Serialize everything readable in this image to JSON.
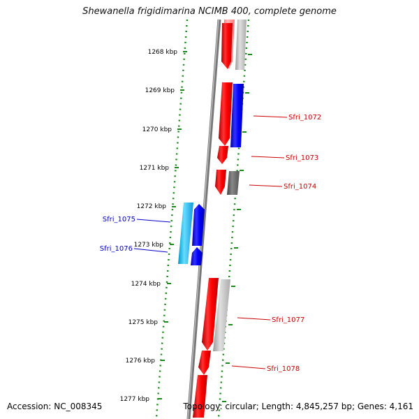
{
  "title": "Shewanella frigidimarina NCIMB 400, complete genome",
  "footer": {
    "accession": "Accession: NC_008345",
    "summary": "Topology: circular; Length: 4,845,257 bp; Genes: 4,161"
  },
  "ticks": [
    "1268 kbp",
    "1269 kbp",
    "1270 kbp",
    "1271 kbp",
    "1272 kbp",
    "1273 kbp",
    "1274 kbp",
    "1275 kbp",
    "1276 kbp",
    "1277 kbp"
  ],
  "gene_labels": [
    {
      "name": "Sfri_1072",
      "color": "#cc0000"
    },
    {
      "name": "Sfri_1073",
      "color": "#cc0000"
    },
    {
      "name": "Sfri_1074",
      "color": "#cc0000"
    },
    {
      "name": "Sfri_1075",
      "color": "#0000cc"
    },
    {
      "name": "Sfri_1076",
      "color": "#0000cc"
    },
    {
      "name": "Sfri_1077",
      "color": "#cc0000"
    },
    {
      "name": "Sfri_1078",
      "color": "#cc0000"
    }
  ],
  "colors": {
    "forward_gene": "#ff0000",
    "reverse_gene": "#0000ff",
    "reverse_rna": "#22bbee",
    "pseudo_light": "#bbbbbb",
    "pseudo_dark": "#666666",
    "backbone": "#888888",
    "dotted_track": "#1a8a1a"
  }
}
